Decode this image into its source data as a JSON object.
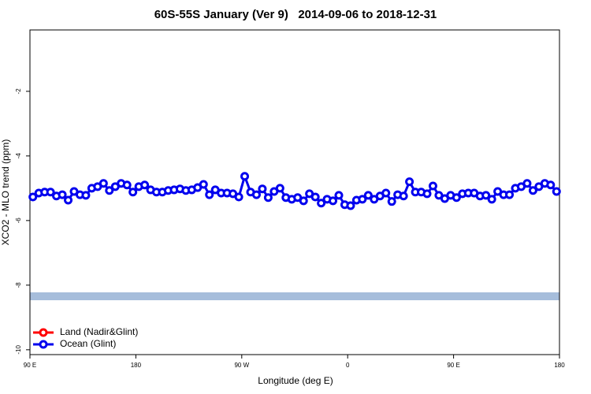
{
  "chart_data": {
    "type": "line",
    "title": "60S-55S January (Ver 9)   2014-09-06 to 2018-12-31",
    "xlabel": "Longitude (deg E)",
    "ylabel": "XCO2 - MLO trend (ppm)",
    "xlim": [
      90,
      540
    ],
    "xticks": [
      {
        "value": 90,
        "label": "90 E"
      },
      180,
      {
        "value": 270,
        "label": "90 W"
      },
      {
        "value": 360,
        "label": "0"
      },
      {
        "value": 450,
        "label": "90 E"
      },
      {
        "value": 540,
        "label": "180"
      }
    ],
    "ylim": [
      -10.15,
      -0.1
    ],
    "yticks": [
      -2,
      -4,
      -6,
      -8,
      -10
    ],
    "legend": "bottom-left",
    "x": [
      92.5,
      97.5,
      102.5,
      107.5,
      112.5,
      117.5,
      122.5,
      127.5,
      132.5,
      137.5,
      142.5,
      147.5,
      152.5,
      157.5,
      162.5,
      167.5,
      172.5,
      177.5,
      182.5,
      187.5,
      192.5,
      197.5,
      202.5,
      207.5,
      212.5,
      217.5,
      222.5,
      227.5,
      232.5,
      237.5,
      242.5,
      247.5,
      252.5,
      257.5,
      262.5,
      267.5,
      272.5,
      277.5,
      282.5,
      287.5,
      292.5,
      297.5,
      302.5,
      307.5,
      312.5,
      317.5,
      322.5,
      327.5,
      332.5,
      337.5,
      342.5,
      347.5,
      352.5,
      357.5,
      362.5,
      367.5,
      372.5,
      377.5,
      382.5,
      387.5,
      392.5,
      397.5,
      402.5,
      407.5,
      412.5,
      417.5,
      422.5,
      427.5,
      432.5,
      437.5,
      442.5,
      447.5,
      452.5,
      457.5,
      462.5,
      467.5,
      472.5,
      477.5,
      482.5,
      487.5,
      492.5,
      497.5,
      502.5,
      507.5,
      512.5,
      517.5,
      522.5,
      527.5,
      532.5,
      537.5
    ],
    "series": [
      {
        "name": "Land (Nadir&Glint)",
        "color": "#ff0000",
        "values": [
          null,
          null,
          null,
          null,
          null,
          null,
          null,
          null,
          null,
          null,
          null,
          null,
          null,
          null,
          null,
          null,
          null,
          null,
          null,
          null,
          null,
          null,
          null,
          null,
          null,
          null,
          null,
          null,
          null,
          null,
          null,
          null,
          null,
          null,
          null,
          null,
          null,
          null,
          null,
          null,
          null,
          null,
          null,
          null,
          null,
          null,
          null,
          null,
          null,
          null,
          null,
          null,
          null,
          null,
          null,
          null,
          null,
          null,
          null,
          null,
          null,
          null,
          null,
          null,
          null,
          null,
          null,
          null,
          null,
          null,
          null,
          null,
          null,
          null,
          null,
          null,
          null,
          null,
          null,
          null,
          null,
          null,
          null,
          null,
          null,
          null,
          null,
          null,
          null,
          null
        ]
      },
      {
        "name": "Ocean (Glint)",
        "color": "#0000ee",
        "values": [
          -5.27,
          -5.15,
          -5.12,
          -5.12,
          -5.24,
          -5.2,
          -5.37,
          -5.1,
          -5.2,
          -5.22,
          -5.0,
          -4.95,
          -4.85,
          -5.07,
          -4.95,
          -4.85,
          -4.9,
          -5.12,
          -4.95,
          -4.9,
          -5.05,
          -5.12,
          -5.12,
          -5.07,
          -5.05,
          -5.02,
          -5.07,
          -5.05,
          -4.98,
          -4.88,
          -5.2,
          -5.05,
          -5.15,
          -5.15,
          -5.17,
          -5.27,
          -4.63,
          -5.12,
          -5.2,
          -5.02,
          -5.29,
          -5.1,
          -5.0,
          -5.29,
          -5.34,
          -5.29,
          -5.39,
          -5.17,
          -5.27,
          -5.46,
          -5.34,
          -5.39,
          -5.22,
          -5.51,
          -5.54,
          -5.37,
          -5.34,
          -5.22,
          -5.34,
          -5.24,
          -5.15,
          -5.41,
          -5.2,
          -5.24,
          -4.8,
          -5.12,
          -5.12,
          -5.17,
          -4.93,
          -5.22,
          -5.32,
          -5.22,
          -5.29,
          -5.17,
          -5.15,
          -5.15,
          -5.24,
          -5.22,
          -5.34,
          -5.1,
          -5.2,
          -5.2,
          -5.0,
          -4.95,
          -4.85,
          -5.07,
          -4.95,
          -4.85,
          -4.9,
          -5.1
        ]
      }
    ]
  }
}
